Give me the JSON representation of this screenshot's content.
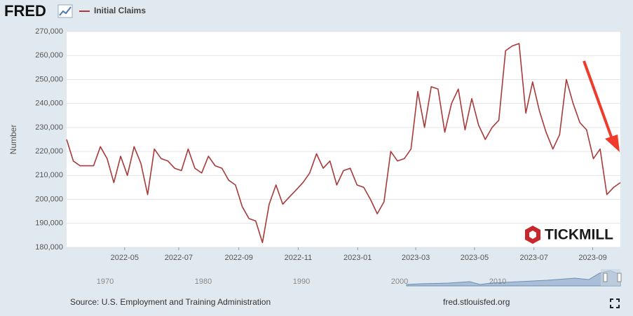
{
  "header": {
    "logo": "FRED",
    "legend": "Initial Claims"
  },
  "chart_data": {
    "type": "line",
    "ylabel": "Number",
    "xlim": [
      0,
      82
    ],
    "xticks": [
      {
        "value": 8.6,
        "label": "2022-05"
      },
      {
        "value": 16.6,
        "label": "2022-07"
      },
      {
        "value": 25.5,
        "label": "2022-09"
      },
      {
        "value": 34.3,
        "label": "2022-11"
      },
      {
        "value": 43.1,
        "label": "2023-01"
      },
      {
        "value": 51.7,
        "label": "2023-03"
      },
      {
        "value": 60.4,
        "label": "2023-05"
      },
      {
        "value": 69.2,
        "label": "2023-07"
      },
      {
        "value": 77.9,
        "label": "2023-09"
      }
    ],
    "ylim": [
      180000,
      270000
    ],
    "yticks": [
      {
        "value": 180000,
        "label": "180,000"
      },
      {
        "value": 190000,
        "label": "190,000"
      },
      {
        "value": 200000,
        "label": "200,000"
      },
      {
        "value": 210000,
        "label": "210,000"
      },
      {
        "value": 220000,
        "label": "220,000"
      },
      {
        "value": 230000,
        "label": "230,000"
      },
      {
        "value": 240000,
        "label": "240,000"
      },
      {
        "value": 250000,
        "label": "250,000"
      },
      {
        "value": 260000,
        "label": "260,000"
      },
      {
        "value": 270000,
        "label": "270,000"
      }
    ],
    "grid": true,
    "series": [
      {
        "name": "Initial Claims",
        "color": "#a83a3a",
        "values": [
          225000,
          216000,
          214000,
          214000,
          214000,
          222000,
          217000,
          207000,
          218000,
          210000,
          222000,
          215000,
          202000,
          221000,
          217000,
          216000,
          213000,
          212000,
          221000,
          213000,
          211000,
          218000,
          214000,
          213000,
          208000,
          206000,
          197000,
          192000,
          191000,
          182000,
          198000,
          206000,
          198000,
          201000,
          204000,
          207000,
          211000,
          219000,
          213000,
          216000,
          206000,
          212000,
          213000,
          206000,
          205000,
          200000,
          194000,
          199000,
          220000,
          216000,
          217000,
          221000,
          245000,
          230000,
          247000,
          246000,
          228000,
          240000,
          246000,
          229000,
          242000,
          231000,
          225000,
          230000,
          233000,
          262000,
          264000,
          265000,
          236000,
          249000,
          237000,
          228000,
          221000,
          227000,
          250000,
          240000,
          232000,
          229000,
          217000,
          221000,
          202000,
          205000,
          207000
        ]
      }
    ]
  },
  "navigator": {
    "labels": [
      "1970",
      "1980",
      "1990",
      "2000",
      "2010"
    ]
  },
  "watermark": "TICKMILL",
  "footer": {
    "source": "Source: U.S. Employment and Training Administration",
    "site": "fred.stlouisfed.org"
  }
}
